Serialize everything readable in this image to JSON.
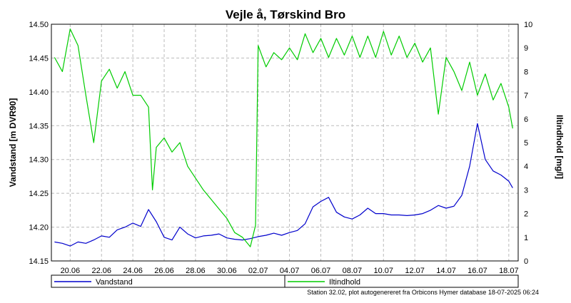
{
  "chart_data": {
    "type": "line",
    "title": "Vejle å, Tørskind Bro",
    "xlabel": "",
    "x_ticks": [
      "20.06",
      "22.06",
      "24.06",
      "26.06",
      "28.06",
      "30.06",
      "02.07",
      "04.07",
      "06.07",
      "08.07",
      "10.07",
      "12.07",
      "14.07",
      "16.07",
      "18.07"
    ],
    "y_left": {
      "label": "Vandstand [m DVR90]",
      "range": [
        14.15,
        14.5
      ],
      "ticks": [
        "14.15",
        "14.20",
        "14.25",
        "14.30",
        "14.35",
        "14.40",
        "14.45",
        "14.50"
      ]
    },
    "y_right": {
      "label": "Iltindhold [mg/l]",
      "range": [
        0,
        10
      ],
      "ticks": [
        "0",
        "1",
        "2",
        "3",
        "4",
        "5",
        "6",
        "7",
        "8",
        "9",
        "10"
      ]
    },
    "grid": true,
    "legend_position": "bottom",
    "series": [
      {
        "name": "Vandstand",
        "color": "#0000cc",
        "axis": "left",
        "x": [
          "19.06 00:00",
          "19.06 12:00",
          "20.06 00:00",
          "20.06 12:00",
          "21.06 00:00",
          "21.06 12:00",
          "22.06 00:00",
          "22.06 12:00",
          "23.06 00:00",
          "23.06 12:00",
          "24.06 00:00",
          "24.06 12:00",
          "25.06 00:00",
          "25.06 12:00",
          "26.06 00:00",
          "26.06 12:00",
          "27.06 00:00",
          "27.06 12:00",
          "28.06 00:00",
          "28.06 12:00",
          "29.06 00:00",
          "29.06 12:00",
          "30.06 00:00",
          "30.06 12:00",
          "01.07 00:00",
          "01.07 12:00",
          "02.07 00:00",
          "02.07 12:00",
          "03.07 00:00",
          "03.07 12:00",
          "04.07 00:00",
          "04.07 12:00",
          "05.07 00:00",
          "05.07 12:00",
          "06.07 00:00",
          "06.07 12:00",
          "07.07 00:00",
          "07.07 12:00",
          "08.07 00:00",
          "08.07 12:00",
          "09.07 00:00",
          "09.07 12:00",
          "10.07 00:00",
          "10.07 12:00",
          "11.07 00:00",
          "11.07 12:00",
          "12.07 00:00",
          "12.07 12:00",
          "13.07 00:00",
          "13.07 12:00",
          "14.07 00:00",
          "14.07 12:00",
          "15.07 00:00",
          "15.07 12:00",
          "16.07 00:00",
          "16.07 12:00",
          "17.07 00:00",
          "17.07 12:00",
          "18.07 00:00",
          "18.07 06:00"
        ],
        "y": [
          14.178,
          14.176,
          14.172,
          14.178,
          14.176,
          14.181,
          14.187,
          14.185,
          14.196,
          14.2,
          14.206,
          14.201,
          14.226,
          14.208,
          14.185,
          14.181,
          14.2,
          14.19,
          14.184,
          14.187,
          14.188,
          14.19,
          14.184,
          14.182,
          14.181,
          14.183,
          14.186,
          14.188,
          14.191,
          14.188,
          14.192,
          14.195,
          14.205,
          14.23,
          14.238,
          14.244,
          14.222,
          14.215,
          14.212,
          14.218,
          14.228,
          14.22,
          14.22,
          14.218,
          14.218,
          14.217,
          14.218,
          14.22,
          14.225,
          14.232,
          14.228,
          14.231,
          14.247,
          14.29,
          14.353,
          14.3,
          14.283,
          14.277,
          14.268,
          14.258
        ]
      },
      {
        "name": "Iltindhold",
        "color": "#00cc00",
        "axis": "right",
        "x": [
          "19.06 00:00",
          "19.06 12:00",
          "20.06 00:00",
          "20.06 12:00",
          "21.06 00:00",
          "21.06 12:00",
          "22.06 00:00",
          "22.06 12:00",
          "23.06 00:00",
          "23.06 12:00",
          "24.06 00:00",
          "24.06 12:00",
          "25.06 00:00",
          "25.06 06:00",
          "25.06 12:00",
          "26.06 00:00",
          "26.06 12:00",
          "27.06 00:00",
          "27.06 12:00",
          "28.06 00:00",
          "28.06 12:00",
          "29.06 00:00",
          "29.06 12:00",
          "30.06 00:00",
          "30.06 12:00",
          "01.07 00:00",
          "01.07 12:00",
          "01.07 20:00",
          "02.07 00:00",
          "02.07 12:00",
          "03.07 00:00",
          "03.07 12:00",
          "04.07 00:00",
          "04.07 12:00",
          "05.07 00:00",
          "05.07 12:00",
          "06.07 00:00",
          "06.07 12:00",
          "07.07 00:00",
          "07.07 12:00",
          "08.07 00:00",
          "08.07 12:00",
          "09.07 00:00",
          "09.07 12:00",
          "10.07 00:00",
          "10.07 12:00",
          "11.07 00:00",
          "11.07 12:00",
          "12.07 00:00",
          "12.07 12:00",
          "13.07 00:00",
          "13.07 12:00",
          "14.07 00:00",
          "14.07 12:00",
          "15.07 00:00",
          "15.07 12:00",
          "16.07 00:00",
          "16.07 12:00",
          "17.07 00:00",
          "17.07 12:00",
          "18.07 00:00",
          "18.07 06:00"
        ],
        "y": [
          8.6,
          8.0,
          9.8,
          9.1,
          7.0,
          5.0,
          7.6,
          8.1,
          7.3,
          8.0,
          7.0,
          7.0,
          6.5,
          3.0,
          4.8,
          5.2,
          4.6,
          5.0,
          4.0,
          3.5,
          3.0,
          2.6,
          2.2,
          1.8,
          1.2,
          1.0,
          0.6,
          1.5,
          9.1,
          8.2,
          8.8,
          8.5,
          9.0,
          8.5,
          9.6,
          8.8,
          9.4,
          8.6,
          9.4,
          8.7,
          9.5,
          8.6,
          9.5,
          8.6,
          9.7,
          8.7,
          9.5,
          8.6,
          9.2,
          8.4,
          9.0,
          6.2,
          8.6,
          8.0,
          7.2,
          8.4,
          7.0,
          7.9,
          6.8,
          7.5,
          6.5,
          5.6
        ]
      }
    ]
  },
  "legend": {
    "items": [
      "Vandstand",
      "Iltindhold"
    ]
  },
  "footer": {
    "text": "Station 32.02, plot autogenereret fra Orbicons Hymer database 18-07-2025 06:24"
  }
}
